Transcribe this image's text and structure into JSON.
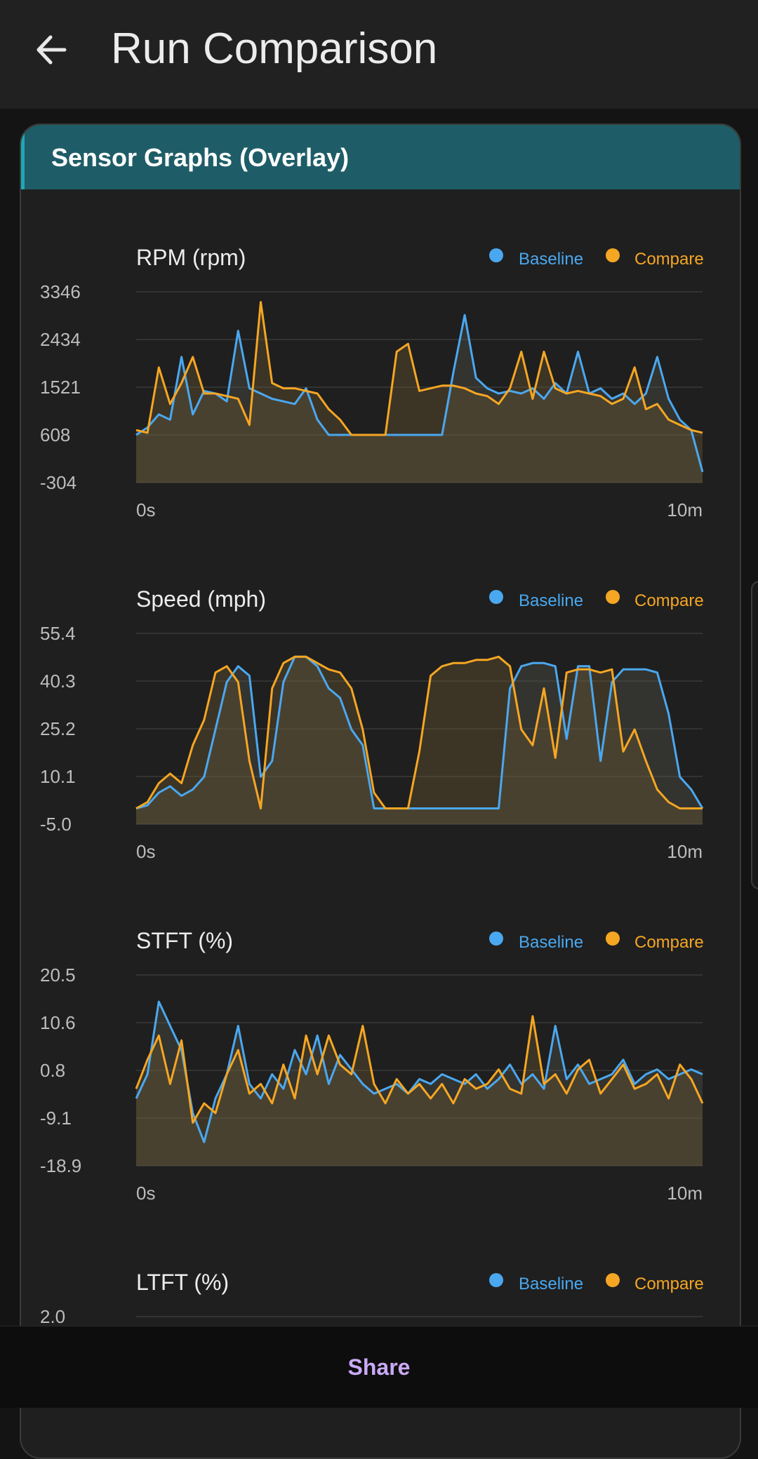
{
  "appbar": {
    "title": "Run Comparison",
    "back_icon": "arrow-left-icon"
  },
  "card": {
    "title": "Sensor Graphs (Overlay)"
  },
  "legend": {
    "baseline": "Baseline",
    "compare": "Compare"
  },
  "colors": {
    "baseline": "#4aa8f0",
    "compare": "#f5a623",
    "header": "#1e5d67",
    "accent": "#1ea7b8",
    "share": "#c9a9f5"
  },
  "share_label": "Share",
  "chart_data": [
    {
      "type": "line",
      "title": "RPM (rpm)",
      "yticks": [
        "3346",
        "2434",
        "1521",
        "608",
        "-304"
      ],
      "ylim": [
        -304,
        3346
      ],
      "x_start_label": "0s",
      "x_end_label": "10m",
      "series": [
        {
          "name": "Baseline",
          "x": [
            0,
            2,
            4,
            6,
            8,
            10,
            12,
            14,
            16,
            18,
            20,
            22,
            24,
            26,
            28,
            30,
            32,
            34,
            36,
            38,
            40,
            42,
            44,
            46,
            48,
            50,
            52,
            54,
            56,
            58,
            60,
            62,
            64,
            66,
            68,
            70,
            72,
            74,
            76,
            78,
            80,
            82,
            84,
            86,
            88,
            90,
            92,
            94,
            96,
            98,
            100
          ],
          "values": [
            608,
            750,
            1000,
            900,
            2100,
            1000,
            1450,
            1400,
            1250,
            2600,
            1500,
            1400,
            1300,
            1250,
            1200,
            1500,
            900,
            608,
            608,
            608,
            608,
            608,
            608,
            608,
            608,
            608,
            608,
            608,
            1800,
            2900,
            1700,
            1500,
            1400,
            1450,
            1400,
            1500,
            1300,
            1600,
            1400,
            2200,
            1400,
            1500,
            1300,
            1400,
            1200,
            1400,
            2100,
            1300,
            900,
            700,
            -100
          ]
        },
        {
          "name": "Compare",
          "x": [
            0,
            2,
            4,
            6,
            8,
            10,
            12,
            14,
            16,
            18,
            20,
            22,
            24,
            26,
            28,
            30,
            32,
            34,
            36,
            38,
            40,
            42,
            44,
            46,
            48,
            50,
            52,
            54,
            56,
            58,
            60,
            62,
            64,
            66,
            68,
            70,
            72,
            74,
            76,
            78,
            80,
            82,
            84,
            86,
            88,
            90,
            92,
            94,
            96,
            98,
            100
          ],
          "values": [
            700,
            650,
            1900,
            1200,
            1600,
            2100,
            1400,
            1400,
            1350,
            1300,
            800,
            3150,
            1600,
            1500,
            1500,
            1450,
            1400,
            1100,
            900,
            608,
            608,
            608,
            608,
            2200,
            2350,
            1450,
            1500,
            1550,
            1550,
            1500,
            1400,
            1350,
            1200,
            1500,
            2200,
            1300,
            2200,
            1500,
            1400,
            1450,
            1400,
            1350,
            1200,
            1300,
            1900,
            1100,
            1200,
            900,
            800,
            700,
            650
          ]
        }
      ]
    },
    {
      "type": "line",
      "title": "Speed (mph)",
      "yticks": [
        "55.4",
        "40.3",
        "25.2",
        "10.1",
        "-5.0"
      ],
      "ylim": [
        -5.0,
        55.4
      ],
      "x_start_label": "0s",
      "x_end_label": "10m",
      "series": [
        {
          "name": "Baseline",
          "x": [
            0,
            2,
            4,
            6,
            8,
            10,
            12,
            14,
            16,
            18,
            20,
            22,
            24,
            26,
            28,
            30,
            32,
            34,
            36,
            38,
            40,
            42,
            44,
            46,
            48,
            50,
            52,
            54,
            56,
            58,
            60,
            62,
            64,
            66,
            68,
            70,
            72,
            74,
            76,
            78,
            80,
            82,
            84,
            86,
            88,
            90,
            92,
            94,
            96,
            98,
            100
          ],
          "values": [
            0,
            1,
            5,
            7,
            4,
            6,
            10,
            25,
            40,
            45,
            42,
            10,
            15,
            40,
            48,
            48,
            45,
            38,
            35,
            25,
            20,
            0,
            0,
            0,
            0,
            0,
            0,
            0,
            0,
            0,
            0,
            0,
            0,
            38,
            45,
            46,
            46,
            45,
            22,
            45,
            45,
            15,
            40,
            44,
            44,
            44,
            43,
            30,
            10,
            6,
            0
          ]
        },
        {
          "name": "Compare",
          "x": [
            0,
            2,
            4,
            6,
            8,
            10,
            12,
            14,
            16,
            18,
            20,
            22,
            24,
            26,
            28,
            30,
            32,
            34,
            36,
            38,
            40,
            42,
            44,
            46,
            48,
            50,
            52,
            54,
            56,
            58,
            60,
            62,
            64,
            66,
            68,
            70,
            72,
            74,
            76,
            78,
            80,
            82,
            84,
            86,
            88,
            90,
            92,
            94,
            96,
            98,
            100
          ],
          "values": [
            0,
            2,
            8,
            11,
            8,
            20,
            28,
            43,
            45,
            40,
            15,
            0,
            38,
            46,
            48,
            48,
            46,
            44,
            43,
            38,
            25,
            5,
            0,
            0,
            0,
            18,
            42,
            45,
            46,
            46,
            47,
            47,
            48,
            45,
            25,
            20,
            38,
            16,
            43,
            44,
            44,
            43,
            44,
            18,
            25,
            15,
            6,
            2,
            0,
            0,
            0
          ]
        }
      ]
    },
    {
      "type": "line",
      "title": "STFT (%)",
      "yticks": [
        "20.5",
        "10.6",
        "0.8",
        "-9.1",
        "-18.9"
      ],
      "ylim": [
        -18.9,
        20.5
      ],
      "x_start_label": "0s",
      "x_end_label": "10m",
      "series": [
        {
          "name": "Baseline",
          "x": [
            0,
            2,
            4,
            6,
            8,
            10,
            12,
            14,
            16,
            18,
            20,
            22,
            24,
            26,
            28,
            30,
            32,
            34,
            36,
            38,
            40,
            42,
            44,
            46,
            48,
            50,
            52,
            54,
            56,
            58,
            60,
            62,
            64,
            66,
            68,
            70,
            72,
            74,
            76,
            78,
            80,
            82,
            84,
            86,
            88,
            90,
            92,
            94,
            96,
            98,
            100
          ],
          "values": [
            -5,
            0,
            15,
            10,
            5,
            -8,
            -14,
            -5,
            0,
            10,
            -2,
            -5,
            0,
            -3,
            5,
            0,
            8,
            -2,
            4,
            1,
            -2,
            -4,
            -3,
            -2,
            -4,
            -1,
            -2,
            0,
            -1,
            -2,
            0,
            -3,
            -1,
            2,
            -2,
            0,
            -3,
            10,
            -1,
            2,
            -2,
            -1,
            0,
            3,
            -2,
            0,
            1,
            -1,
            0,
            1,
            0
          ]
        },
        {
          "name": "Compare",
          "x": [
            0,
            2,
            4,
            6,
            8,
            10,
            12,
            14,
            16,
            18,
            20,
            22,
            24,
            26,
            28,
            30,
            32,
            34,
            36,
            38,
            40,
            42,
            44,
            46,
            48,
            50,
            52,
            54,
            56,
            58,
            60,
            62,
            64,
            66,
            68,
            70,
            72,
            74,
            76,
            78,
            80,
            82,
            84,
            86,
            88,
            90,
            92,
            94,
            96,
            98,
            100
          ],
          "values": [
            -3,
            3,
            8,
            -2,
            7,
            -10,
            -6,
            -8,
            0,
            5,
            -4,
            -2,
            -6,
            2,
            -5,
            8,
            0,
            8,
            2,
            0,
            10,
            -2,
            -6,
            -1,
            -4,
            -2,
            -5,
            -2,
            -6,
            -1,
            -3,
            -2,
            1,
            -3,
            -4,
            12,
            -2,
            0,
            -4,
            1,
            3,
            -4,
            -1,
            2,
            -3,
            -2,
            0,
            -5,
            2,
            -1,
            -6
          ]
        }
      ]
    },
    {
      "type": "line",
      "title": "LTFT (%)",
      "yticks": [
        "2.0"
      ],
      "x_start_label": "",
      "x_end_label": "",
      "series": [
        {
          "name": "Baseline",
          "values": []
        },
        {
          "name": "Compare",
          "values": []
        }
      ]
    }
  ]
}
